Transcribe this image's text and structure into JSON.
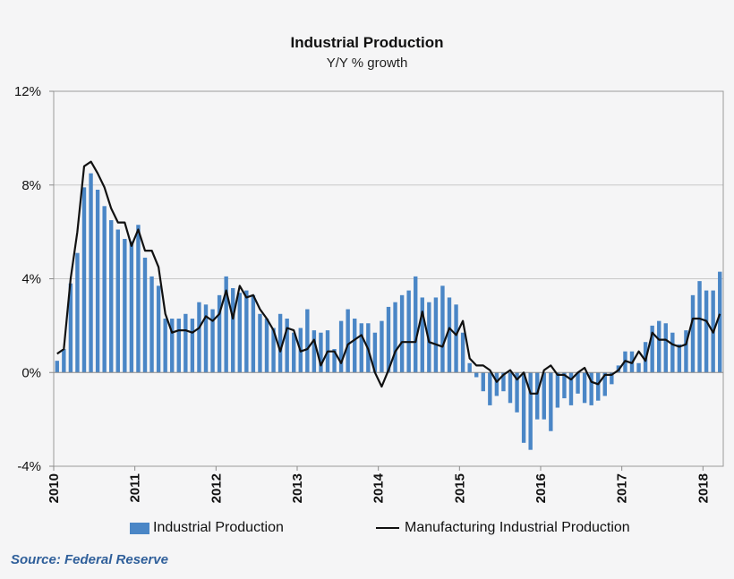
{
  "chart_data": {
    "type": "bar",
    "title": "Industrial Production",
    "subtitle": "Y/Y % growth",
    "source": "Source: Federal Reserve",
    "ylim": [
      -4,
      12
    ],
    "yticks": [
      -4,
      0,
      4,
      8,
      12
    ],
    "ytick_labels": [
      "-4%",
      "0%",
      "4%",
      "8%",
      "12%"
    ],
    "xticks": [
      "2010",
      "2011",
      "2012",
      "2013",
      "2014",
      "2015",
      "2016",
      "2017",
      "2018"
    ],
    "x_start": "2010-01",
    "x_end": "2018-02",
    "grid": true,
    "legend_position": "bottom",
    "colors": {
      "bars": "#4a86c6",
      "line": "#111111",
      "grid": "#c8c8c8"
    },
    "series": [
      {
        "name": "Industrial Production",
        "type": "bar",
        "values": [
          0.5,
          1.0,
          3.8,
          5.1,
          7.9,
          8.5,
          7.8,
          7.1,
          6.5,
          6.1,
          5.7,
          5.6,
          6.3,
          4.9,
          4.1,
          3.7,
          2.3,
          2.3,
          2.3,
          2.5,
          2.3,
          3.0,
          2.9,
          2.7,
          3.3,
          4.1,
          3.6,
          3.4,
          3.5,
          3.3,
          2.5,
          2.3,
          1.9,
          2.5,
          2.3,
          1.7,
          1.9,
          2.7,
          1.8,
          1.7,
          1.8,
          1.0,
          2.2,
          2.7,
          2.3,
          2.1,
          2.1,
          1.7,
          2.2,
          2.8,
          3.0,
          3.3,
          3.5,
          4.1,
          3.2,
          3.0,
          3.2,
          3.7,
          3.2,
          2.9,
          1.7,
          0.4,
          -0.2,
          -0.8,
          -1.4,
          -1.0,
          -0.8,
          -1.3,
          -1.7,
          -3.0,
          -3.3,
          -2.0,
          -2.0,
          -2.5,
          -1.5,
          -1.1,
          -1.4,
          -0.9,
          -1.3,
          -1.4,
          -1.2,
          -1.0,
          -0.5,
          0.3,
          0.9,
          0.9,
          0.4,
          1.3,
          2.0,
          2.2,
          2.1,
          1.7,
          1.2,
          1.8,
          3.3,
          3.9,
          3.5,
          3.5,
          4.3
        ]
      },
      {
        "name": "Manufacturing Industrial Production",
        "type": "line",
        "values": [
          0.8,
          1.0,
          4.0,
          6.0,
          8.8,
          9.0,
          8.5,
          7.9,
          7.0,
          6.4,
          6.4,
          5.4,
          6.1,
          5.2,
          5.2,
          4.5,
          2.5,
          1.7,
          1.8,
          1.8,
          1.7,
          1.9,
          2.4,
          2.2,
          2.5,
          3.5,
          2.3,
          3.7,
          3.2,
          3.3,
          2.7,
          2.3,
          1.8,
          0.9,
          1.9,
          1.8,
          0.9,
          1.0,
          1.4,
          0.3,
          0.9,
          0.9,
          0.4,
          1.2,
          1.4,
          1.6,
          1.0,
          0.0,
          -0.6,
          0.1,
          0.9,
          1.3,
          1.3,
          1.3,
          2.6,
          1.3,
          1.2,
          1.1,
          1.9,
          1.6,
          2.2,
          0.6,
          0.3,
          0.3,
          0.1,
          -0.4,
          -0.1,
          0.1,
          -0.3,
          0.0,
          -0.9,
          -0.9,
          0.1,
          0.3,
          -0.1,
          -0.1,
          -0.3,
          0.0,
          0.2,
          -0.4,
          -0.5,
          -0.1,
          -0.1,
          0.1,
          0.5,
          0.4,
          0.9,
          0.5,
          1.7,
          1.4,
          1.4,
          1.2,
          1.1,
          1.2,
          2.3,
          2.3,
          2.2,
          1.7,
          2.5
        ]
      }
    ]
  }
}
